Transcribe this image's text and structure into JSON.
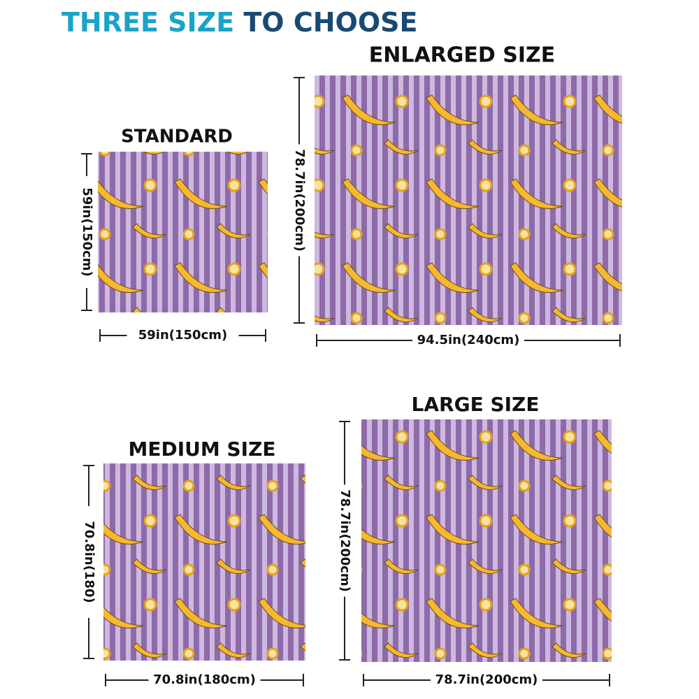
{
  "title": {
    "part1": "THREE SIZE",
    "part2": "TO CHOOSE"
  },
  "panels": [
    {
      "label": "STANDARD",
      "height_label": "59in(150cm)",
      "width_label": "59in(150cm)"
    },
    {
      "label": "ENLARGED SIZE",
      "height_label": "78.7in(200cm)",
      "width_label": "94.5in(240cm)"
    },
    {
      "label": "MEDIUM SIZE",
      "height_label": "70.8in(180)",
      "width_label": "70.8in(180cm)"
    },
    {
      "label": "LARGE SIZE",
      "height_label": "78.7in(200cm)",
      "width_label": "78.7in(200cm)"
    }
  ]
}
